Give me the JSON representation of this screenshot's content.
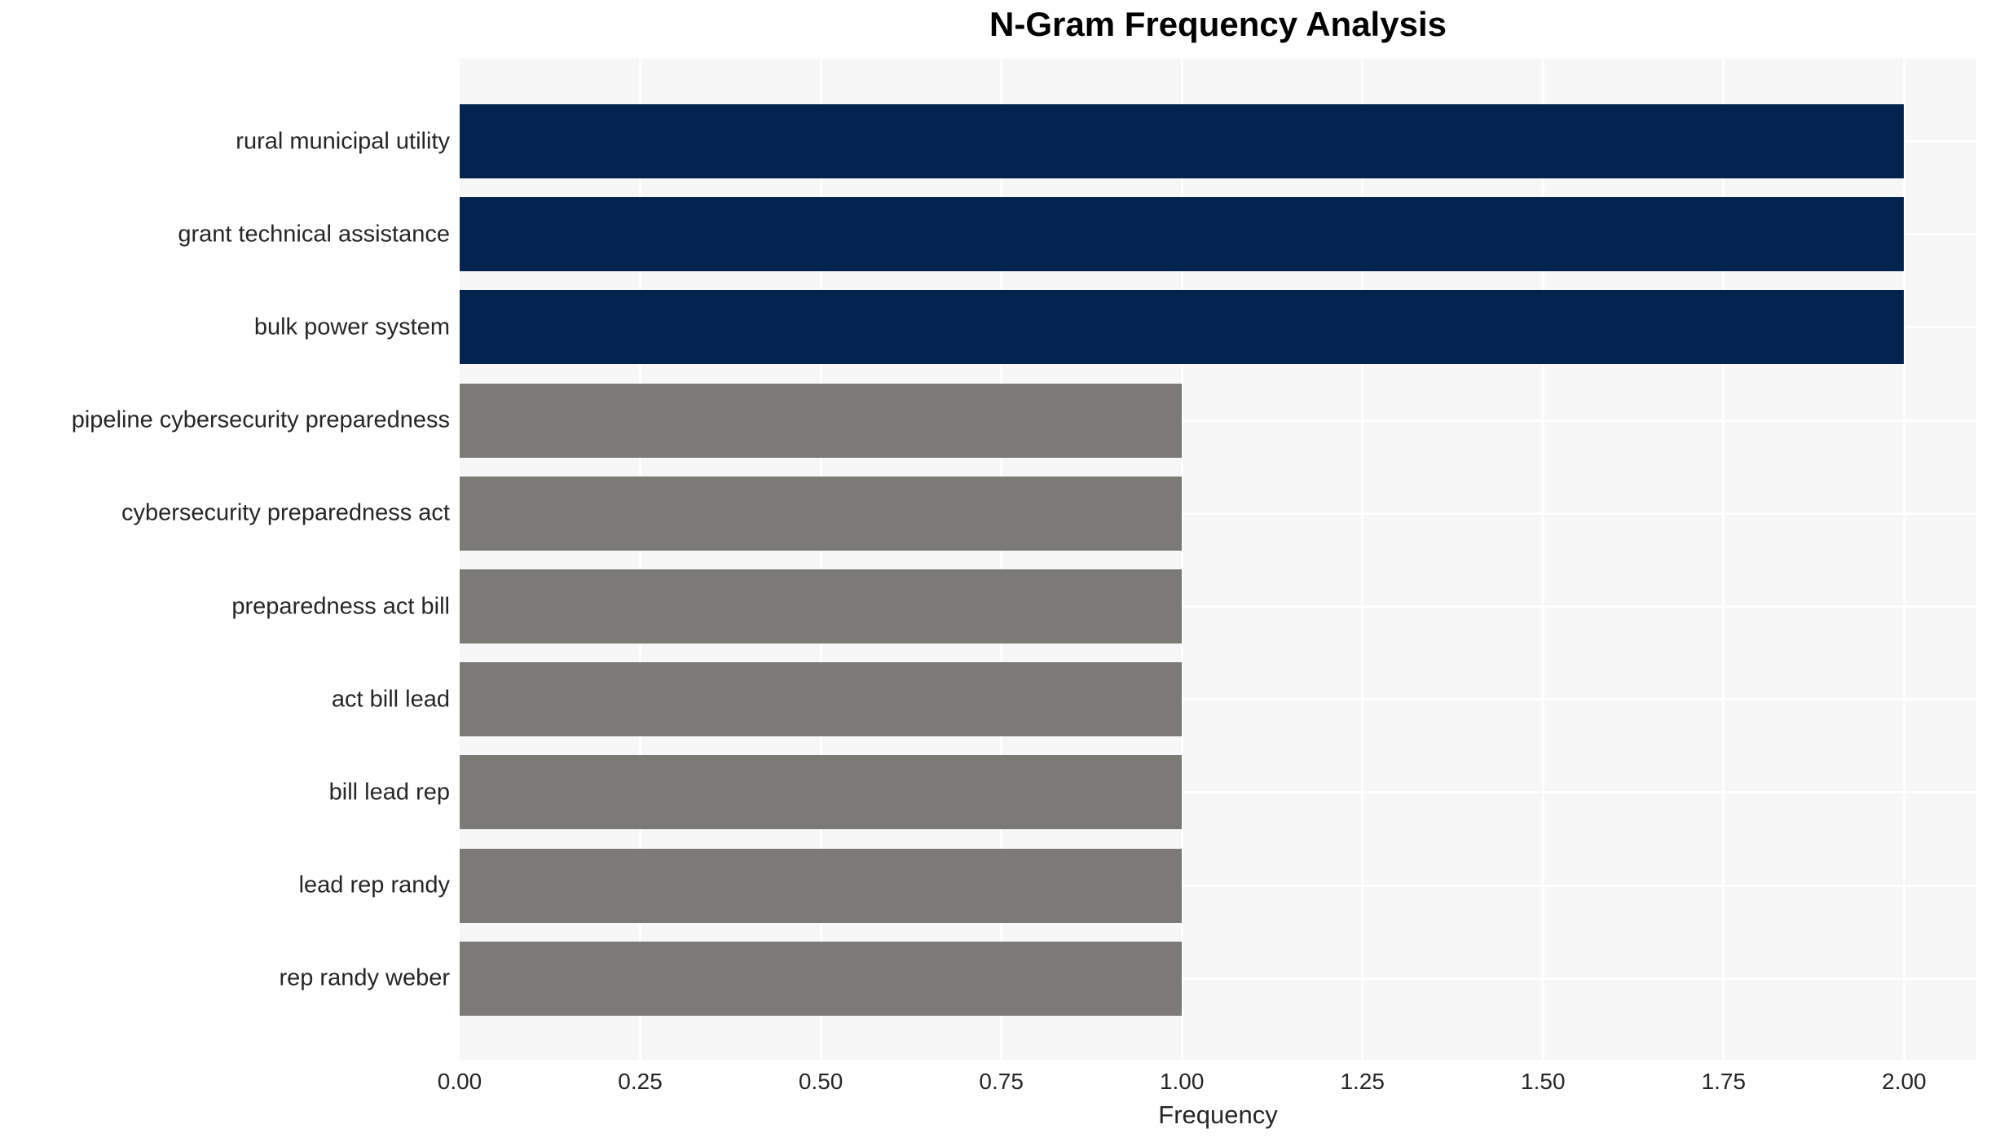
{
  "chart_data": {
    "type": "bar",
    "orientation": "horizontal",
    "title": "N-Gram Frequency Analysis",
    "xlabel": "Frequency",
    "ylabel": "",
    "categories": [
      "rural municipal utility",
      "grant technical assistance",
      "bulk power system",
      "pipeline cybersecurity preparedness",
      "cybersecurity preparedness act",
      "preparedness act bill",
      "act bill lead",
      "bill lead rep",
      "lead rep randy",
      "rep randy weber"
    ],
    "values": [
      2,
      2,
      2,
      1,
      1,
      1,
      1,
      1,
      1,
      1
    ],
    "bar_colors": [
      "#02234d",
      "#02234d",
      "#02234d",
      "#7b7a76",
      "#7b7a76",
      "#7b7a76",
      "#7b7a76",
      "#7b7a76",
      "#7b7a76",
      "#7b7a76"
    ],
    "xlim": [
      0,
      2.1
    ],
    "xticks": [
      0,
      0.25,
      0.5,
      0.75,
      1.0,
      1.25,
      1.5,
      1.75,
      2.0
    ],
    "xtick_labels": [
      "0.00",
      "0.25",
      "0.50",
      "0.75",
      "1.00",
      "1.25",
      "1.50",
      "1.75",
      "2.00"
    ],
    "grid": "white gridlines on light-gray panel, vertical at x-ticks and horizontal at category centers",
    "legend": "none",
    "colors": {
      "highlight": "#02234d",
      "base": "#7b7a76",
      "plot_background": "#f7f7f7",
      "gridline": "#ffffff",
      "text": "#262626",
      "title_text": "#000000"
    }
  }
}
